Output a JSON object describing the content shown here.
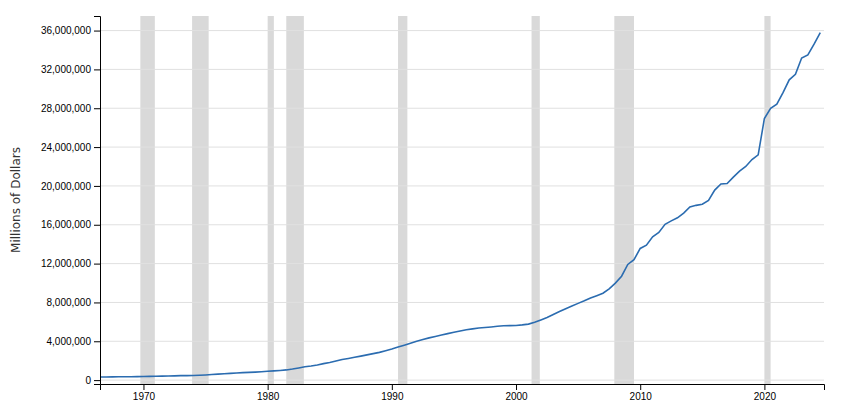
{
  "chart_data": {
    "type": "line",
    "ylabel": "Millions of Dollars",
    "color": "#2b6cb0",
    "grid": true,
    "xlim": [
      1966.5,
      2024.8
    ],
    "xticks": [
      1970,
      1980,
      1990,
      2000,
      2010,
      2020
    ],
    "ylim": [
      -400000,
      37500000
    ],
    "yticks": [
      0,
      {
        "value": 4000000,
        "label": "4,000,000"
      },
      {
        "value": 8000000,
        "label": "8,000,000"
      },
      {
        "value": 12000000,
        "label": "12,000,000"
      },
      {
        "value": 16000000,
        "label": "16,000,000"
      },
      {
        "value": 20000000,
        "label": "20,000,000"
      },
      {
        "value": 24000000,
        "label": "24,000,000"
      },
      {
        "value": 28000000,
        "label": "28,000,000"
      },
      {
        "value": 32000000,
        "label": "32,000,000"
      },
      {
        "value": 36000000,
        "label": "36,000,000"
      }
    ],
    "recessions": [
      [
        1969.75,
        1970.916
      ],
      [
        1973.916,
        1975.25
      ],
      [
        1980.0,
        1980.5
      ],
      [
        1981.5,
        1982.916
      ],
      [
        1990.5,
        1991.25
      ],
      [
        2001.25,
        2001.916
      ],
      [
        2007.916,
        2009.5
      ],
      [
        2020.0,
        2020.5
      ]
    ],
    "x": [
      1966.5,
      1967.0,
      1967.5,
      1968.0,
      1968.5,
      1969.0,
      1969.5,
      1970.0,
      1970.5,
      1971.0,
      1971.5,
      1972.0,
      1972.5,
      1973.0,
      1973.5,
      1974.0,
      1974.5,
      1975.0,
      1975.5,
      1976.0,
      1976.5,
      1977.0,
      1977.5,
      1978.0,
      1978.5,
      1979.0,
      1979.5,
      1980.0,
      1980.5,
      1981.0,
      1981.5,
      1982.0,
      1982.5,
      1983.0,
      1983.5,
      1984.0,
      1984.5,
      1985.0,
      1985.5,
      1986.0,
      1986.5,
      1987.0,
      1987.5,
      1988.0,
      1988.5,
      1989.0,
      1989.5,
      1990.0,
      1990.5,
      1991.0,
      1991.5,
      1992.0,
      1992.5,
      1993.0,
      1993.5,
      1994.0,
      1994.5,
      1995.0,
      1995.5,
      1996.0,
      1996.5,
      1997.0,
      1997.5,
      1998.0,
      1998.5,
      1999.0,
      1999.5,
      2000.0,
      2000.5,
      2001.0,
      2001.5,
      2002.0,
      2002.5,
      2003.0,
      2003.5,
      2004.0,
      2004.5,
      2005.0,
      2005.5,
      2006.0,
      2006.5,
      2007.0,
      2007.5,
      2008.0,
      2008.5,
      2009.0,
      2009.5,
      2010.0,
      2010.5,
      2011.0,
      2011.5,
      2012.0,
      2012.5,
      2013.0,
      2013.5,
      2014.0,
      2014.5,
      2015.0,
      2015.5,
      2016.0,
      2016.5,
      2017.0,
      2017.5,
      2018.0,
      2018.5,
      2019.0,
      2019.5,
      2020.0,
      2020.5,
      2021.0,
      2021.5,
      2022.0,
      2022.5,
      2023.0,
      2023.5,
      2024.0,
      2024.5
    ],
    "values": [
      320000,
      326000,
      335000,
      348000,
      352000,
      354000,
      360000,
      371000,
      382000,
      398000,
      410000,
      427000,
      440000,
      458000,
      466000,
      474000,
      500000,
      533000,
      574000,
      620000,
      653000,
      699000,
      733000,
      772000,
      798000,
      827000,
      864000,
      908000,
      950000,
      995000,
      1050000,
      1137000,
      1250000,
      1372000,
      1460000,
      1564000,
      1695000,
      1818000,
      1970000,
      2121000,
      2230000,
      2346000,
      2470000,
      2601000,
      2730000,
      2857000,
      3030000,
      3206000,
      3400000,
      3598000,
      3800000,
      4002000,
      4175000,
      4351000,
      4500000,
      4643000,
      4785000,
      4921000,
      5050000,
      5181000,
      5275000,
      5369000,
      5420000,
      5478000,
      5540000,
      5606000,
      5616000,
      5629000,
      5685000,
      5770000,
      5950000,
      6198000,
      6450000,
      6760000,
      7060000,
      7355000,
      7630000,
      7905000,
      8170000,
      8452000,
      8700000,
      8951000,
      9400000,
      9986000,
      10700000,
      11910000,
      12400000,
      13562000,
      13900000,
      14764000,
      15200000,
      16051000,
      16400000,
      16719000,
      17200000,
      17824000,
      18000000,
      18120000,
      18500000,
      19573000,
      20200000,
      20245000,
      20900000,
      21516000,
      22000000,
      22719000,
      23200000,
      26945000,
      28000000,
      28429000,
      29600000,
      30929000,
      31500000,
      33167000,
      33500000,
      34600000,
      35800000
    ]
  }
}
